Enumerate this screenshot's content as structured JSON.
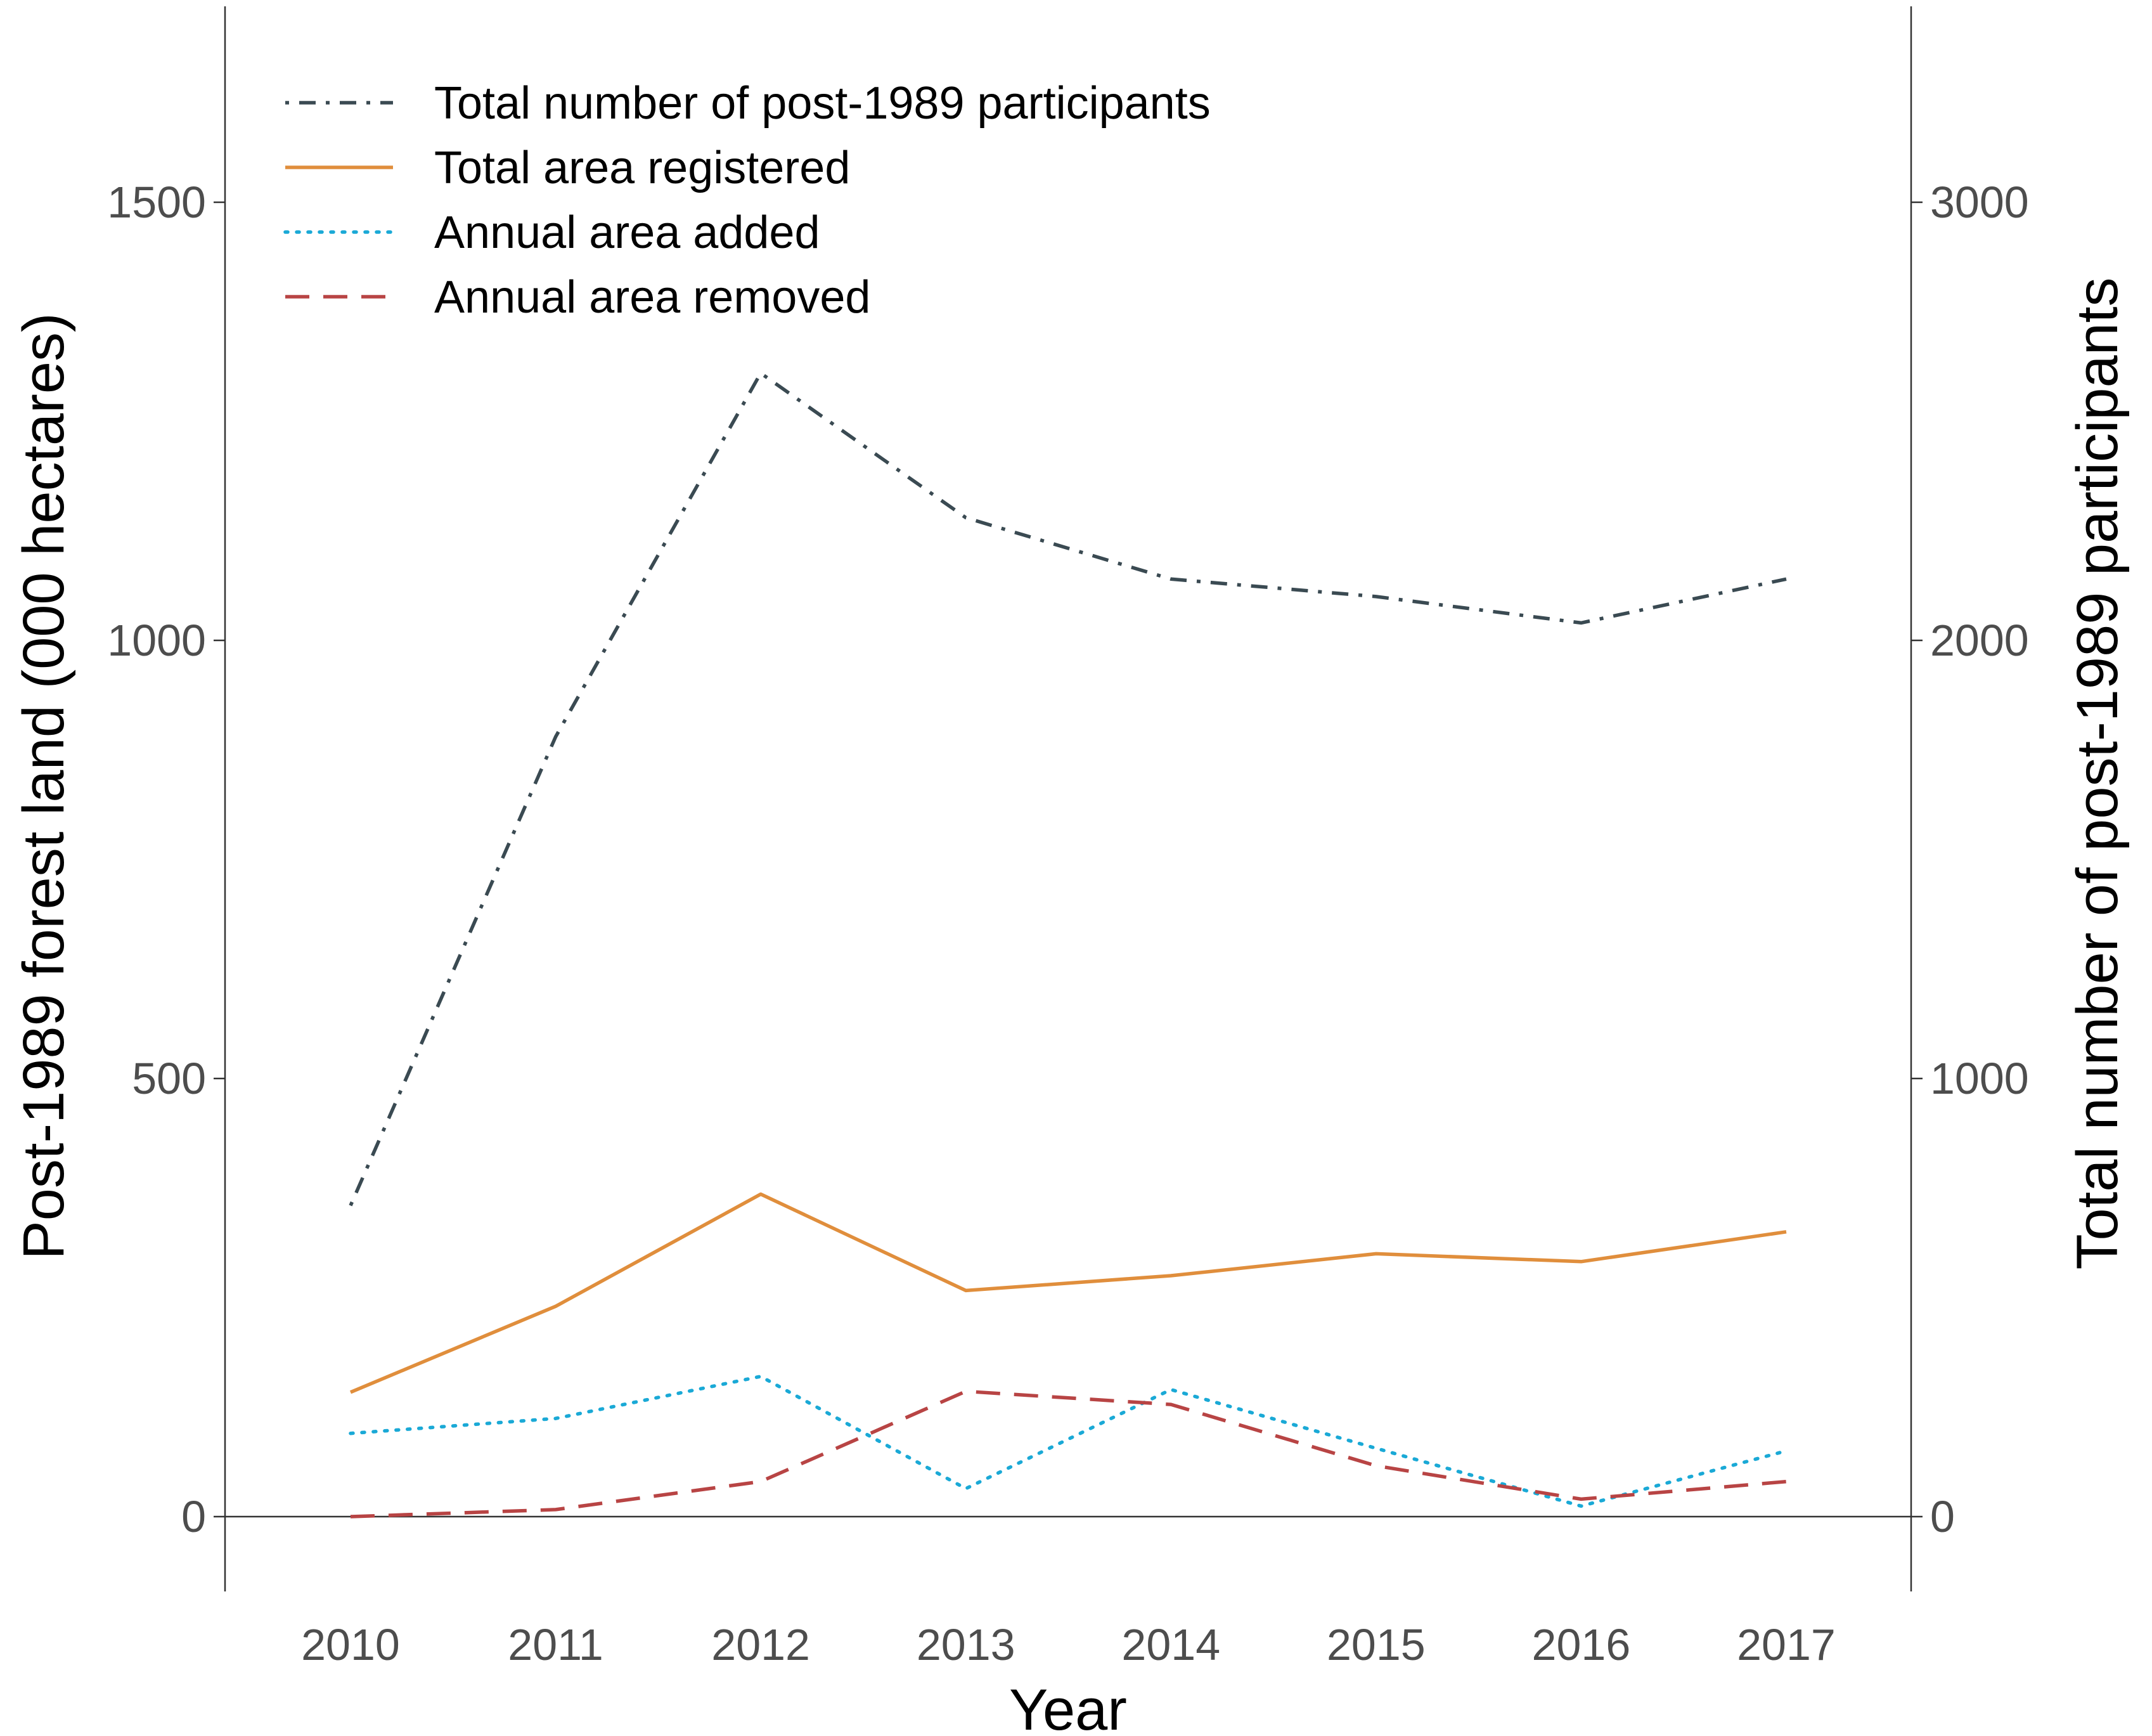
{
  "chart_data": {
    "type": "line",
    "categories": [
      "2010",
      "2011",
      "2012",
      "2013",
      "2014",
      "2015",
      "2016",
      "2017"
    ],
    "xlabel": "Year",
    "ylabel_left": "Post-1989 forest land (000 hectares)",
    "ylabel_right": "Total number of post-1989 participants",
    "ylim_left": [
      -80,
      1750
    ],
    "ylim_right": [
      -160,
      3500
    ],
    "yticks_left": [
      "0",
      "500",
      "1000",
      "1500"
    ],
    "yticks_right": [
      "0",
      "1000",
      "2000",
      "3000"
    ],
    "legend_position": "top-left",
    "series": [
      {
        "name": "Total number of post-1989 participants",
        "axis": "right",
        "style": "dashdot",
        "color": "#3a4a52",
        "values": [
          710,
          1780,
          2610,
          2280,
          2140,
          2100,
          2040,
          2140
        ]
      },
      {
        "name": "Total area registered",
        "axis": "left",
        "style": "solid",
        "color": "#e08e3c",
        "values": [
          142,
          240,
          368,
          258,
          275,
          300,
          291,
          325
        ]
      },
      {
        "name": "Annual area added",
        "axis": "left",
        "style": "dotted",
        "color": "#1aa9d6",
        "values": [
          95,
          112,
          160,
          32,
          145,
          78,
          12,
          75
        ]
      },
      {
        "name": "Annual area removed",
        "axis": "left",
        "style": "dashed",
        "color": "#b84444",
        "values": [
          0,
          8,
          40,
          143,
          128,
          58,
          20,
          40
        ]
      }
    ]
  }
}
